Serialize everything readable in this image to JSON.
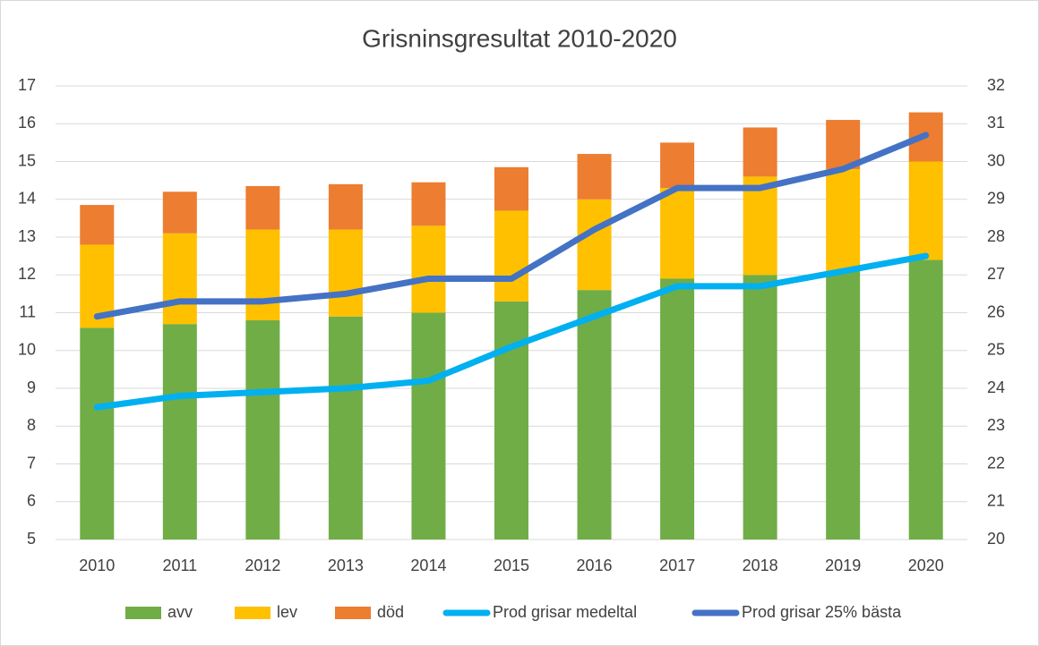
{
  "chart_data": {
    "type": "bar",
    "stacked": true,
    "title": "Grisninsgresultat 2010-2020",
    "categories": [
      "2010",
      "2011",
      "2012",
      "2013",
      "2014",
      "2015",
      "2016",
      "2017",
      "2018",
      "2019",
      "2020"
    ],
    "series": [
      {
        "name": "avv",
        "type": "bar",
        "color": "#70ad47",
        "values": [
          10.6,
          10.7,
          10.8,
          10.9,
          11.0,
          11.3,
          11.6,
          11.9,
          12.0,
          12.1,
          12.4
        ]
      },
      {
        "name": "lev",
        "type": "bar",
        "color": "#ffc000",
        "values": [
          2.2,
          2.4,
          2.4,
          2.3,
          2.3,
          2.4,
          2.4,
          2.4,
          2.6,
          2.7,
          2.6
        ]
      },
      {
        "name": "död",
        "type": "bar",
        "color": "#ed7d31",
        "values": [
          1.05,
          1.1,
          1.15,
          1.2,
          1.15,
          1.15,
          1.2,
          1.2,
          1.3,
          1.3,
          1.3
        ]
      },
      {
        "name": "Prod grisar medeltal",
        "type": "line",
        "axis": "y2",
        "color": "#00b0f0",
        "values": [
          23.5,
          23.8,
          23.9,
          24.0,
          24.2,
          25.1,
          25.9,
          26.7,
          26.7,
          27.1,
          27.5
        ]
      },
      {
        "name": "Prod grisar 25% bästa",
        "type": "line",
        "axis": "y2",
        "color": "#4472c4",
        "values": [
          25.9,
          26.3,
          26.3,
          26.5,
          26.9,
          26.9,
          28.2,
          29.3,
          29.3,
          29.8,
          30.7
        ]
      }
    ],
    "ylim": [
      5,
      17
    ],
    "yticks": [
      5,
      6,
      7,
      8,
      9,
      10,
      11,
      12,
      13,
      14,
      15,
      16,
      17
    ],
    "y2lim": [
      20,
      32
    ],
    "y2ticks": [
      20,
      21,
      22,
      23,
      24,
      25,
      26,
      27,
      28,
      29,
      30,
      31,
      32
    ],
    "grid": true,
    "legend": "bottom"
  }
}
